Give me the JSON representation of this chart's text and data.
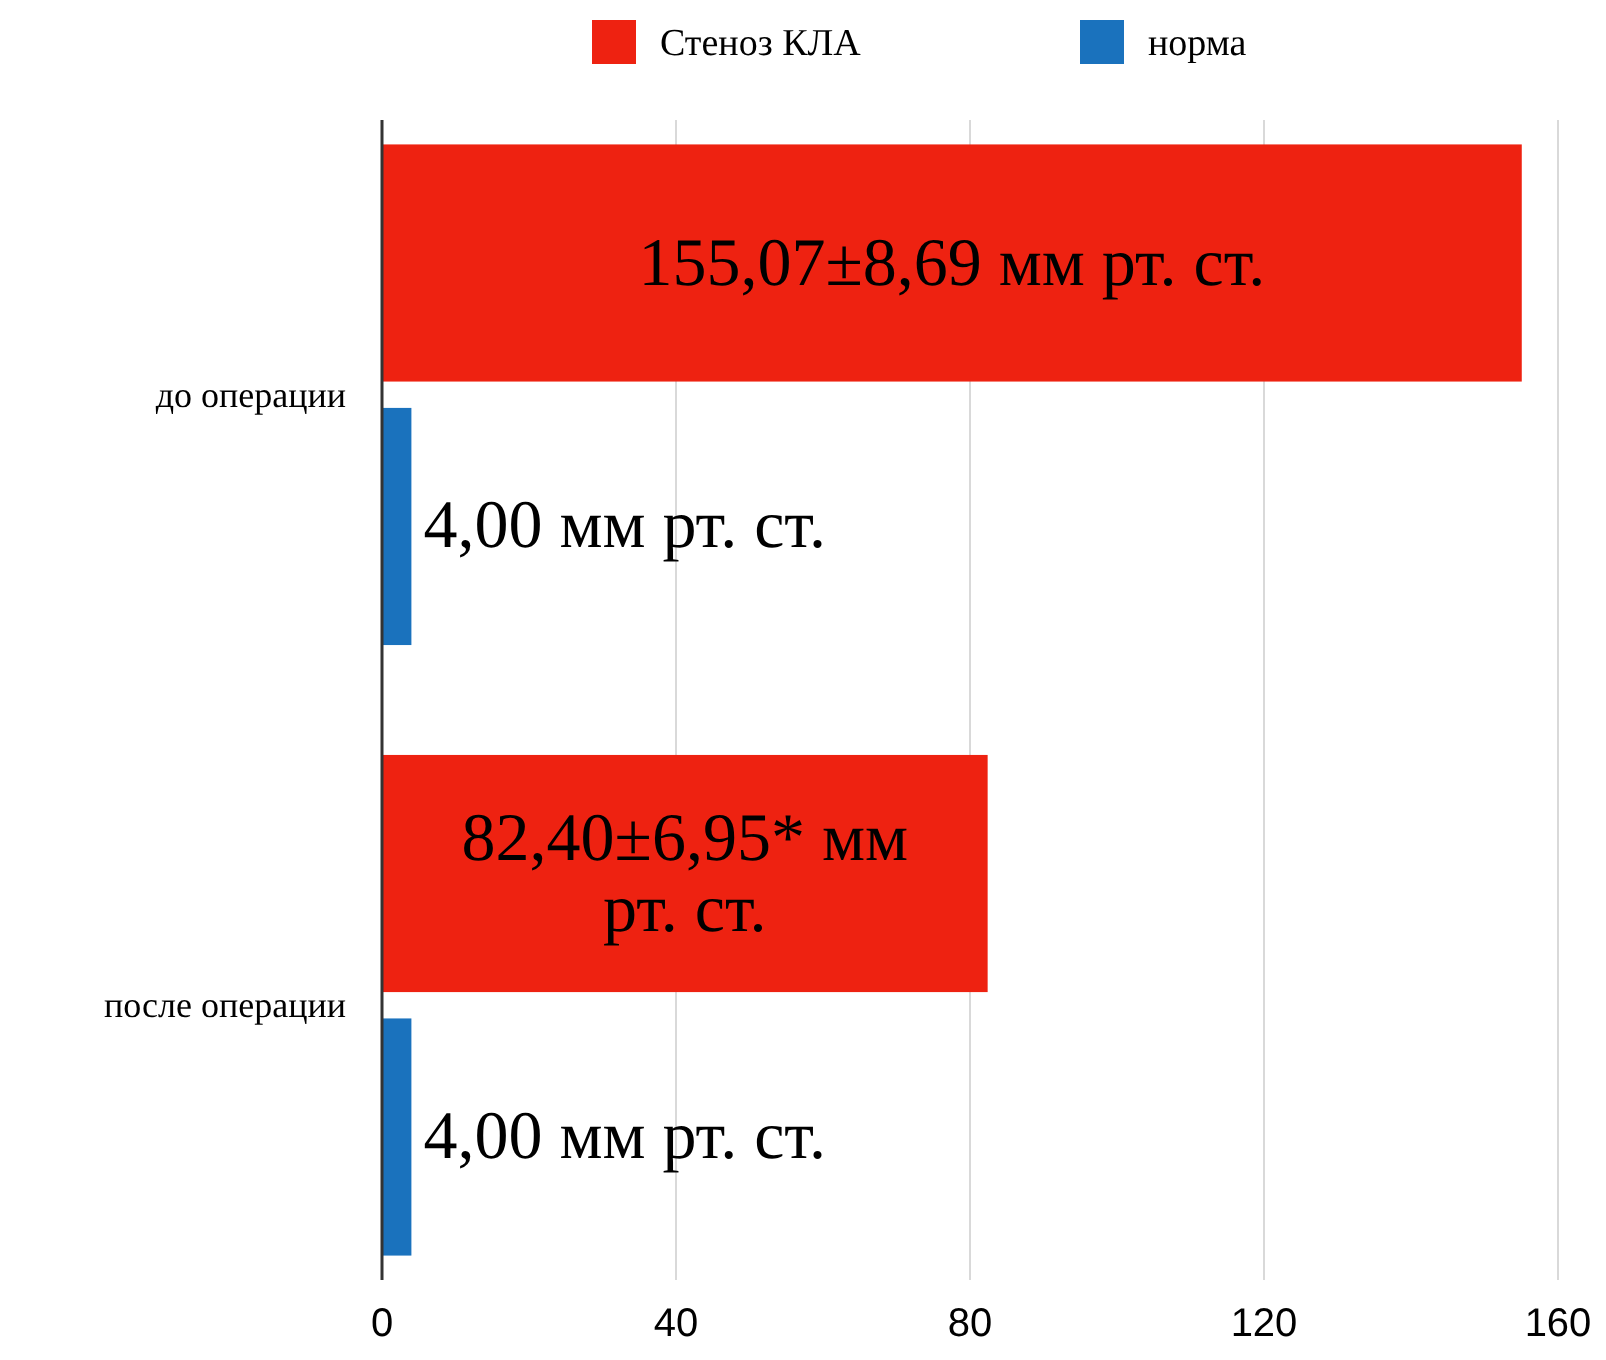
{
  "chart_data": {
    "type": "bar",
    "orientation": "horizontal",
    "categories": [
      "до операции",
      "после операции"
    ],
    "series": [
      {
        "name": "Стеноз КЛА",
        "color": "#ee2211",
        "values": [
          155.07,
          82.4
        ],
        "value_labels": [
          "155,07±8,69 мм рт. ст.",
          "82,40±6,95* мм рт. ст."
        ]
      },
      {
        "name": "норма",
        "color": "#1a72bd",
        "values": [
          4,
          4
        ],
        "value_labels": [
          "4,00 мм рт. ст.",
          "4,00 мм рт. ст."
        ]
      }
    ],
    "xlim": [
      0,
      160
    ],
    "xticks": [
      0,
      40,
      80,
      120,
      160
    ],
    "grid": "x",
    "legend": "top"
  }
}
